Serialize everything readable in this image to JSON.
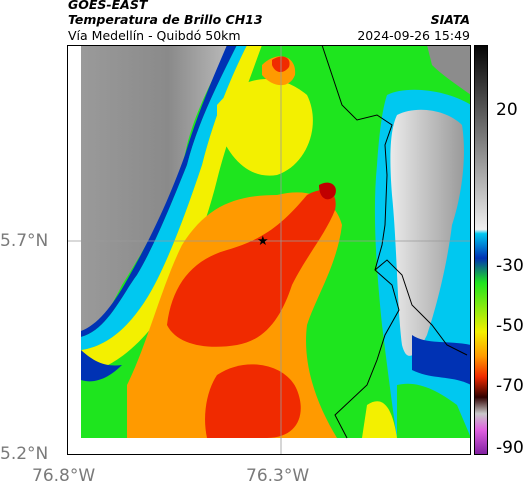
{
  "header": {
    "satellite": "GOES-EAST",
    "product": "Temperatura de Brillo CH13",
    "agency": "SIATA",
    "region": "Vía Medellín - Quibdó 50km",
    "timestamp": "2024-09-26 15:49"
  },
  "map": {
    "y_ticks": [
      "5.7°N",
      "5.2°N"
    ],
    "x_ticks": [
      "76.8°W",
      "76.3°W"
    ],
    "marker": "★"
  },
  "colorbar": {
    "ticks": [
      "20",
      "-30",
      "-50",
      "-70",
      "-90"
    ]
  },
  "colors": {
    "cloud_gray": "#8c8c8c",
    "green": "#1ee51e",
    "yellow": "#f3f000",
    "orange": "#ff9a00",
    "red": "#f02a00",
    "cyan": "#00c8f0",
    "blue": "#0032b4"
  }
}
